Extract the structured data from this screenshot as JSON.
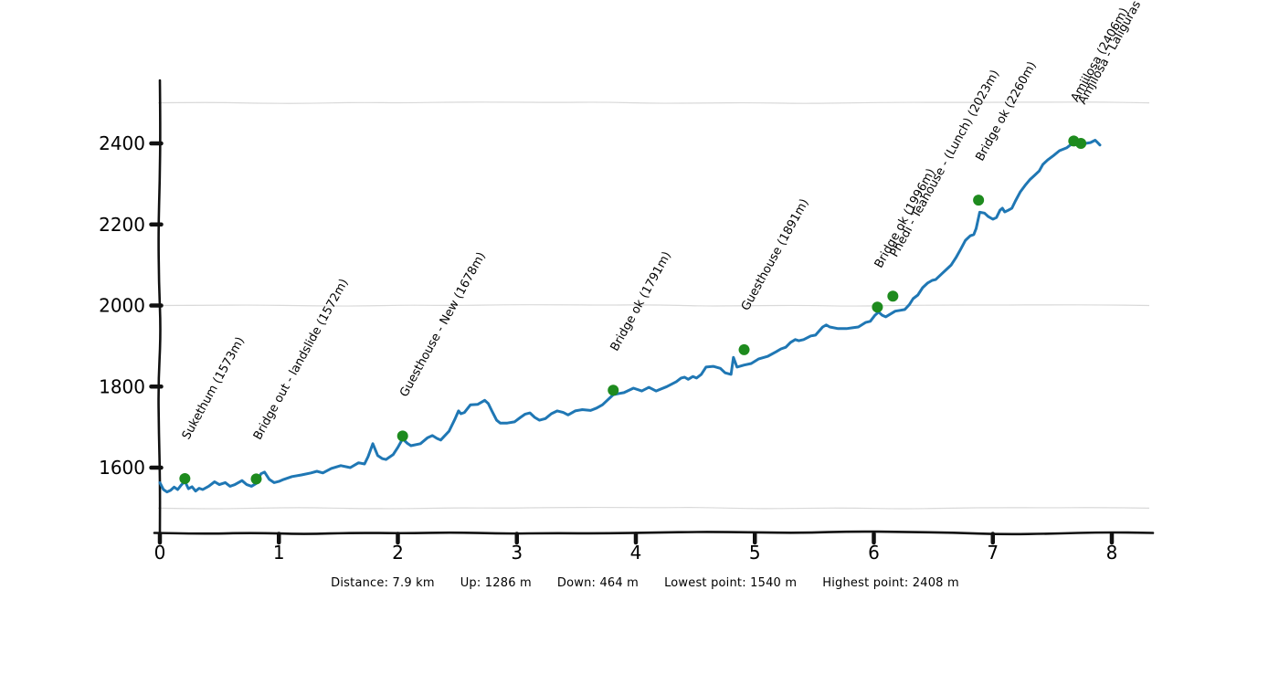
{
  "stats": {
    "distance": "Distance: 7.9 km",
    "up": "Up: 1286 m",
    "down": "Down: 464 m",
    "lowest": "Lowest point: 1540 m",
    "highest": "Highest point: 2408 m"
  },
  "chart_data": {
    "type": "line",
    "style": "xkcd-sketch",
    "title": "",
    "xlabel": "",
    "ylabel": "",
    "x_unit": "km",
    "y_unit": "m",
    "x_ticks": [
      0,
      1,
      2,
      3,
      4,
      5,
      6,
      7,
      8
    ],
    "y_ticks": [
      1600,
      1800,
      2000,
      2200,
      2400
    ],
    "gridlines_m": [
      1500,
      2000,
      2500
    ],
    "grid": "horizontal-only",
    "legend": "none",
    "xlim": [
      0,
      8.35
    ],
    "ylim": [
      1485,
      2555
    ],
    "summary": {
      "distance_km": 7.9,
      "up_m": 1286,
      "down_m": 464,
      "lowest_point_m": 1540,
      "highest_point_m": 2408
    },
    "colors": {
      "line": "#1f77b4",
      "marker": "#1e8b1e",
      "grid": "#d9d9d9",
      "axis": "#111111",
      "text": "#000000"
    },
    "waypoints": [
      {
        "km": 0.21,
        "elevation_m": 1573,
        "label": "Sukethum (1573m)"
      },
      {
        "km": 0.81,
        "elevation_m": 1572,
        "label": "Bridge out - landslide (1572m)"
      },
      {
        "km": 2.04,
        "elevation_m": 1678,
        "label": "Guesthouse - New (1678m)"
      },
      {
        "km": 3.81,
        "elevation_m": 1791,
        "label": "Bridge ok (1791m)"
      },
      {
        "km": 4.91,
        "elevation_m": 1891,
        "label": "Guesthouse (1891m)"
      },
      {
        "km": 6.03,
        "elevation_m": 1996,
        "label": "Bridge ok (1996m)"
      },
      {
        "km": 6.16,
        "elevation_m": 2023,
        "label": "Phedi - Teahouse - (Lunch) (2023m)"
      },
      {
        "km": 6.88,
        "elevation_m": 2260,
        "label": "Bridge ok (2260m)"
      },
      {
        "km": 7.68,
        "elevation_m": 2406,
        "label": "Amjilosa (2406m)"
      },
      {
        "km": 7.74,
        "elevation_m": 2400,
        "label": "Amjilosa - Laliguras"
      }
    ],
    "profile": [
      [
        0.0,
        1563
      ],
      [
        0.03,
        1546
      ],
      [
        0.06,
        1540
      ],
      [
        0.09,
        1544
      ],
      [
        0.12,
        1552
      ],
      [
        0.15,
        1546
      ],
      [
        0.18,
        1557
      ],
      [
        0.21,
        1566
      ],
      [
        0.24,
        1548
      ],
      [
        0.27,
        1553
      ],
      [
        0.3,
        1542
      ],
      [
        0.33,
        1549
      ],
      [
        0.36,
        1546
      ],
      [
        0.41,
        1554
      ],
      [
        0.46,
        1565
      ],
      [
        0.5,
        1558
      ],
      [
        0.55,
        1563
      ],
      [
        0.59,
        1554
      ],
      [
        0.63,
        1558
      ],
      [
        0.69,
        1568
      ],
      [
        0.73,
        1558
      ],
      [
        0.77,
        1554
      ],
      [
        0.81,
        1561
      ],
      [
        0.85,
        1585
      ],
      [
        0.88,
        1589
      ],
      [
        0.92,
        1571
      ],
      [
        0.96,
        1563
      ],
      [
        1.0,
        1566
      ],
      [
        1.04,
        1571
      ],
      [
        1.11,
        1578
      ],
      [
        1.19,
        1582
      ],
      [
        1.27,
        1587
      ],
      [
        1.32,
        1591
      ],
      [
        1.37,
        1587
      ],
      [
        1.44,
        1598
      ],
      [
        1.52,
        1605
      ],
      [
        1.6,
        1600
      ],
      [
        1.67,
        1612
      ],
      [
        1.72,
        1609
      ],
      [
        1.75,
        1627
      ],
      [
        1.79,
        1659
      ],
      [
        1.83,
        1630
      ],
      [
        1.87,
        1622
      ],
      [
        1.9,
        1620
      ],
      [
        1.96,
        1632
      ],
      [
        2.0,
        1650
      ],
      [
        2.04,
        1671
      ],
      [
        2.08,
        1660
      ],
      [
        2.11,
        1654
      ],
      [
        2.19,
        1659
      ],
      [
        2.25,
        1674
      ],
      [
        2.29,
        1679
      ],
      [
        2.33,
        1672
      ],
      [
        2.36,
        1668
      ],
      [
        2.43,
        1690
      ],
      [
        2.48,
        1720
      ],
      [
        2.51,
        1740
      ],
      [
        2.53,
        1733
      ],
      [
        2.56,
        1736
      ],
      [
        2.61,
        1755
      ],
      [
        2.67,
        1756
      ],
      [
        2.73,
        1766
      ],
      [
        2.76,
        1758
      ],
      [
        2.79,
        1740
      ],
      [
        2.83,
        1717
      ],
      [
        2.86,
        1710
      ],
      [
        2.92,
        1710
      ],
      [
        2.98,
        1713
      ],
      [
        3.03,
        1724
      ],
      [
        3.07,
        1732
      ],
      [
        3.11,
        1735
      ],
      [
        3.15,
        1724
      ],
      [
        3.19,
        1717
      ],
      [
        3.24,
        1721
      ],
      [
        3.29,
        1733
      ],
      [
        3.34,
        1740
      ],
      [
        3.39,
        1736
      ],
      [
        3.43,
        1730
      ],
      [
        3.49,
        1740
      ],
      [
        3.55,
        1743
      ],
      [
        3.62,
        1741
      ],
      [
        3.67,
        1747
      ],
      [
        3.72,
        1755
      ],
      [
        3.76,
        1766
      ],
      [
        3.81,
        1780
      ],
      [
        3.86,
        1783
      ],
      [
        3.9,
        1785
      ],
      [
        3.98,
        1796
      ],
      [
        4.05,
        1789
      ],
      [
        4.11,
        1798
      ],
      [
        4.17,
        1789
      ],
      [
        4.26,
        1800
      ],
      [
        4.34,
        1812
      ],
      [
        4.38,
        1821
      ],
      [
        4.41,
        1823
      ],
      [
        4.44,
        1818
      ],
      [
        4.48,
        1825
      ],
      [
        4.51,
        1821
      ],
      [
        4.55,
        1830
      ],
      [
        4.59,
        1848
      ],
      [
        4.65,
        1850
      ],
      [
        4.71,
        1845
      ],
      [
        4.75,
        1834
      ],
      [
        4.8,
        1830
      ],
      [
        4.82,
        1872
      ],
      [
        4.85,
        1848
      ],
      [
        4.91,
        1853
      ],
      [
        4.97,
        1857
      ],
      [
        5.03,
        1868
      ],
      [
        5.11,
        1875
      ],
      [
        5.18,
        1886
      ],
      [
        5.22,
        1893
      ],
      [
        5.26,
        1897
      ],
      [
        5.3,
        1909
      ],
      [
        5.34,
        1916
      ],
      [
        5.37,
        1913
      ],
      [
        5.41,
        1916
      ],
      [
        5.47,
        1925
      ],
      [
        5.51,
        1927
      ],
      [
        5.57,
        1947
      ],
      [
        5.6,
        1952
      ],
      [
        5.63,
        1947
      ],
      [
        5.7,
        1943
      ],
      [
        5.77,
        1943
      ],
      [
        5.82,
        1945
      ],
      [
        5.87,
        1947
      ],
      [
        5.93,
        1958
      ],
      [
        5.97,
        1961
      ],
      [
        6.01,
        1976
      ],
      [
        6.04,
        1984
      ],
      [
        6.07,
        1976
      ],
      [
        6.1,
        1972
      ],
      [
        6.14,
        1979
      ],
      [
        6.18,
        1986
      ],
      [
        6.22,
        1988
      ],
      [
        6.26,
        1990
      ],
      [
        6.3,
        2003
      ],
      [
        6.33,
        2017
      ],
      [
        6.37,
        2026
      ],
      [
        6.41,
        2044
      ],
      [
        6.45,
        2055
      ],
      [
        6.49,
        2062
      ],
      [
        6.52,
        2064
      ],
      [
        6.57,
        2078
      ],
      [
        6.61,
        2089
      ],
      [
        6.65,
        2100
      ],
      [
        6.69,
        2118
      ],
      [
        6.73,
        2139
      ],
      [
        6.77,
        2161
      ],
      [
        6.81,
        2172
      ],
      [
        6.84,
        2175
      ],
      [
        6.86,
        2190
      ],
      [
        6.89,
        2230
      ],
      [
        6.93,
        2228
      ],
      [
        6.96,
        2220
      ],
      [
        7.0,
        2213
      ],
      [
        7.03,
        2217
      ],
      [
        7.06,
        2235
      ],
      [
        7.08,
        2240
      ],
      [
        7.1,
        2231
      ],
      [
        7.13,
        2235
      ],
      [
        7.16,
        2240
      ],
      [
        7.19,
        2258
      ],
      [
        7.23,
        2280
      ],
      [
        7.27,
        2296
      ],
      [
        7.31,
        2310
      ],
      [
        7.35,
        2321
      ],
      [
        7.39,
        2332
      ],
      [
        7.42,
        2348
      ],
      [
        7.46,
        2359
      ],
      [
        7.51,
        2370
      ],
      [
        7.56,
        2382
      ],
      [
        7.62,
        2389
      ],
      [
        7.66,
        2398
      ],
      [
        7.7,
        2403
      ],
      [
        7.74,
        2398
      ],
      [
        7.78,
        2400
      ],
      [
        7.82,
        2402
      ],
      [
        7.86,
        2408
      ],
      [
        7.88,
        2402
      ],
      [
        7.9,
        2396
      ]
    ]
  }
}
